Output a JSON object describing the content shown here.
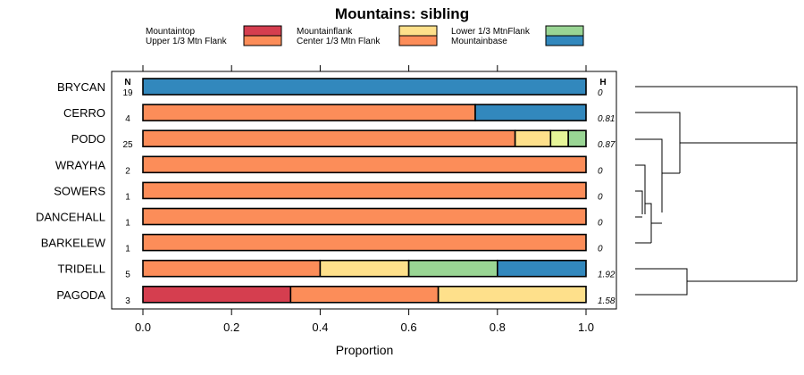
{
  "chart_data": {
    "type": "bar",
    "stacked": true,
    "orientation": "horizontal",
    "title": "Mountains: sibling",
    "xlabel": "Proportion",
    "xlim": [
      0,
      1
    ],
    "xticks": [
      "0.0",
      "0.2",
      "0.4",
      "0.6",
      "0.8",
      "1.0"
    ],
    "n_header": "N",
    "h_header": "H",
    "legend": [
      {
        "label": "Mountaintop",
        "color": "#d53e4f"
      },
      {
        "label": "Upper 1/3 Mtn Flank",
        "color": "#fc8d59"
      },
      {
        "label": "Mountainflank",
        "color": "#fee08b"
      },
      {
        "label": "Center 1/3 Mtn Flank",
        "color": "#fc8d59"
      },
      {
        "label": "Lower 1/3 MtnFlank",
        "color": "#99d594"
      },
      {
        "label": "Mountainbase",
        "color": "#3288bd"
      }
    ],
    "rows": [
      {
        "label": "BRYCAN",
        "n": "19",
        "h": "0",
        "segments": [
          {
            "series": "Mountainbase",
            "value": 1.0,
            "color": "#3288bd"
          }
        ]
      },
      {
        "label": "CERRO",
        "n": "4",
        "h": "0.81",
        "segments": [
          {
            "series": "Center 1/3 Mtn Flank",
            "value": 0.75,
            "color": "#fc8d59"
          },
          {
            "series": "Mountainbase",
            "value": 0.25,
            "color": "#3288bd"
          }
        ]
      },
      {
        "label": "PODO",
        "n": "25",
        "h": "0.87",
        "segments": [
          {
            "series": "Center 1/3 Mtn Flank",
            "value": 0.84,
            "color": "#fc8d59"
          },
          {
            "series": "Mountainflank",
            "value": 0.08,
            "color": "#fee08b"
          },
          {
            "series": "Lower 1/3 MtnFlank (light)",
            "value": 0.04,
            "color": "#e6f598"
          },
          {
            "series": "Lower 1/3 MtnFlank",
            "value": 0.04,
            "color": "#99d594"
          }
        ]
      },
      {
        "label": "WRAYHA",
        "n": "2",
        "h": "0",
        "segments": [
          {
            "series": "Center 1/3 Mtn Flank",
            "value": 1.0,
            "color": "#fc8d59"
          }
        ]
      },
      {
        "label": "SOWERS",
        "n": "1",
        "h": "0",
        "segments": [
          {
            "series": "Center 1/3 Mtn Flank",
            "value": 1.0,
            "color": "#fc8d59"
          }
        ]
      },
      {
        "label": "DANCEHALL",
        "n": "1",
        "h": "0",
        "segments": [
          {
            "series": "Center 1/3 Mtn Flank",
            "value": 1.0,
            "color": "#fc8d59"
          }
        ]
      },
      {
        "label": "BARKELEW",
        "n": "1",
        "h": "0",
        "segments": [
          {
            "series": "Center 1/3 Mtn Flank",
            "value": 1.0,
            "color": "#fc8d59"
          }
        ]
      },
      {
        "label": "TRIDELL",
        "n": "5",
        "h": "1.92",
        "segments": [
          {
            "series": "Center 1/3 Mtn Flank",
            "value": 0.4,
            "color": "#fc8d59"
          },
          {
            "series": "Mountainflank",
            "value": 0.2,
            "color": "#fee08b"
          },
          {
            "series": "Lower 1/3 MtnFlank",
            "value": 0.2,
            "color": "#99d594"
          },
          {
            "series": "Mountainbase",
            "value": 0.2,
            "color": "#3288bd"
          }
        ]
      },
      {
        "label": "PAGODA",
        "n": "3",
        "h": "1.58",
        "segments": [
          {
            "series": "Mountaintop",
            "value": 0.3333,
            "color": "#d53e4f"
          },
          {
            "series": "Center 1/3 Mtn Flank",
            "value": 0.3333,
            "color": "#fc8d59"
          },
          {
            "series": "Mountainflank",
            "value": 0.3334,
            "color": "#fee08b"
          }
        ]
      }
    ]
  }
}
